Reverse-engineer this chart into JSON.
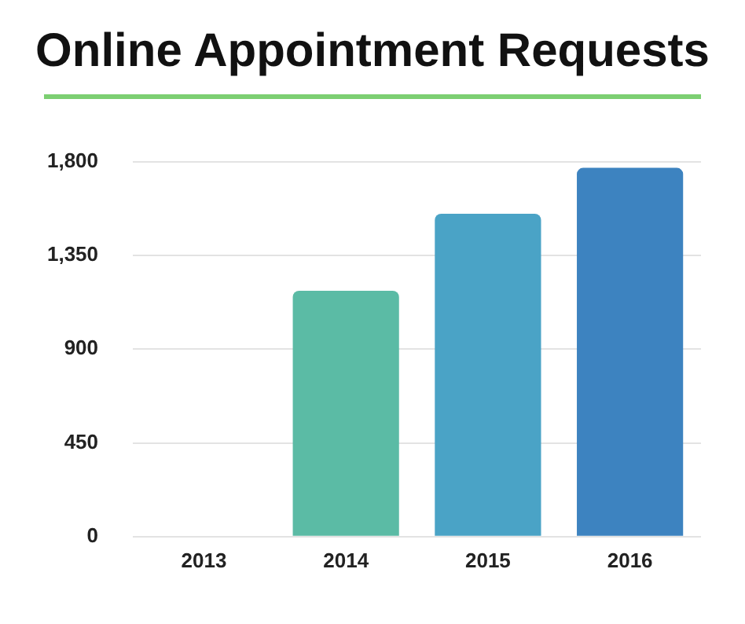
{
  "chart_data": {
    "type": "bar",
    "title": "Online Appointment Requests",
    "categories": [
      "2013",
      "2014",
      "2015",
      "2016"
    ],
    "values": [
      0,
      1180,
      1550,
      1770
    ],
    "colors": [
      "#5bbba5",
      "#5bbba5",
      "#4aa3c6",
      "#3d83c0"
    ],
    "ylim": [
      0,
      1800
    ],
    "yticks": [
      0,
      {
        "value": 450,
        "label": "450"
      },
      {
        "value": 900,
        "label": "900"
      },
      {
        "value": 1350,
        "label": "1,350"
      },
      {
        "value": 1800,
        "label": "1,800"
      }
    ],
    "grid": "y",
    "legend": false
  }
}
